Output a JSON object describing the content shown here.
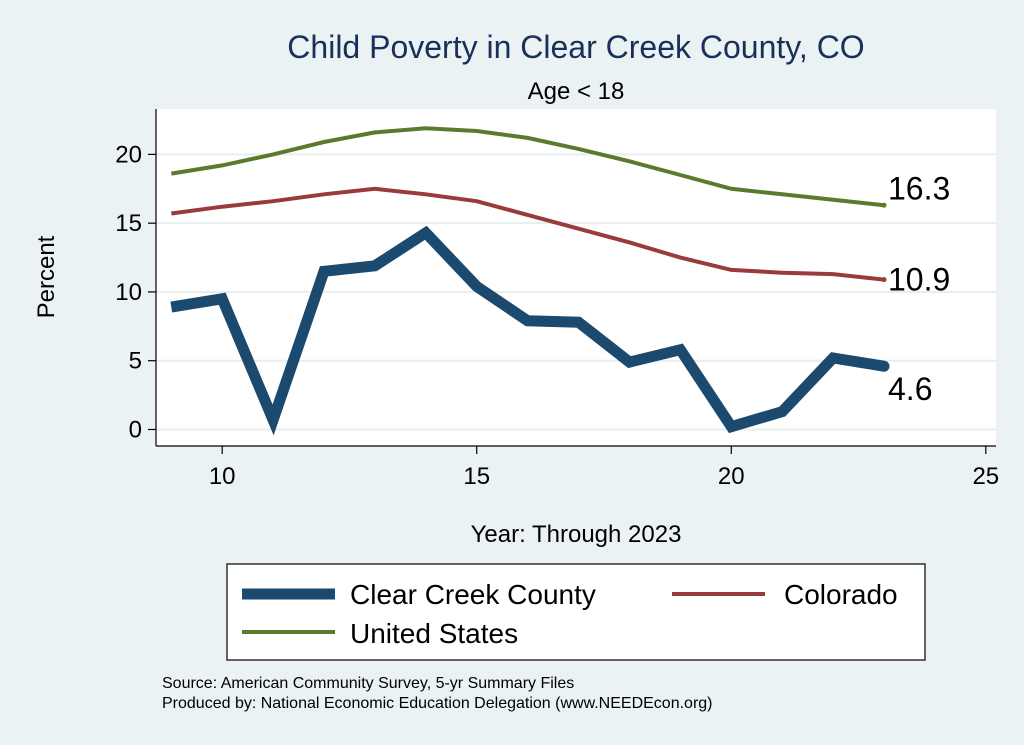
{
  "chart_data": {
    "type": "line",
    "title": "Child Poverty in Clear Creek County, CO",
    "subtitle": "Age < 18",
    "xlabel": "Year: Through 2023",
    "ylabel": "Percent",
    "xlim": [
      8.7,
      25.2
    ],
    "ylim": [
      -1.2,
      23.3
    ],
    "xticks": [
      10,
      15,
      20,
      25
    ],
    "yticks": [
      0,
      5,
      10,
      15,
      20
    ],
    "x": [
      9,
      10,
      11,
      12,
      13,
      14,
      15,
      16,
      17,
      18,
      19,
      20,
      21,
      22,
      23
    ],
    "series": [
      {
        "name": "United States",
        "color": "#5a7a2e",
        "width": 4,
        "values": [
          18.6,
          19.2,
          20.0,
          20.9,
          21.6,
          21.9,
          21.7,
          21.2,
          20.4,
          19.5,
          18.5,
          17.5,
          17.1,
          16.7,
          16.3
        ],
        "end_label": "16.3",
        "end_label_position": "above"
      },
      {
        "name": "Colorado",
        "color": "#9b3a3c",
        "width": 4,
        "values": [
          15.7,
          16.2,
          16.6,
          17.1,
          17.5,
          17.1,
          16.6,
          15.6,
          14.6,
          13.6,
          12.5,
          11.6,
          11.4,
          11.3,
          10.9
        ],
        "end_label": "10.9",
        "end_label_position": "right"
      },
      {
        "name": "Clear Creek County",
        "color": "#1c4a6e",
        "width": 11,
        "values": [
          8.9,
          9.5,
          0.7,
          11.5,
          11.9,
          14.3,
          10.4,
          7.9,
          7.8,
          4.9,
          5.8,
          0.2,
          1.3,
          5.2,
          4.6
        ],
        "end_label": "4.6",
        "end_label_position": "below"
      }
    ],
    "legend": {
      "position": "bottom",
      "entries": [
        "Clear Creek County",
        "Colorado",
        "United States"
      ]
    },
    "grid": true
  },
  "notes": {
    "source": "Source: American Community Survey, 5-yr Summary Files",
    "produced_by": "Produced by: National Economic Education Delegation (www.NEEDEcon.org)"
  }
}
